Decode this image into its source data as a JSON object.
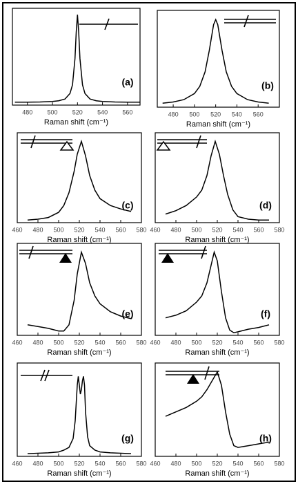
{
  "chart_data": [
    {
      "type": "line",
      "label": "(a)",
      "xlabel": "Raman shift (cm⁻¹)",
      "xlim": [
        468,
        570
      ],
      "xticks": [
        480,
        500,
        520,
        540,
        560
      ],
      "ylim": [
        0,
        1.05
      ],
      "color": "#000000",
      "x": [
        470,
        480,
        490,
        500,
        505,
        510,
        514,
        516,
        518,
        519,
        520,
        521,
        522,
        524,
        526,
        530,
        535,
        540,
        550,
        560,
        570
      ],
      "values": [
        0.032,
        0.032,
        0.034,
        0.039,
        0.047,
        0.066,
        0.125,
        0.22,
        0.505,
        0.79,
        0.98,
        0.79,
        0.505,
        0.22,
        0.125,
        0.066,
        0.047,
        0.039,
        0.034,
        0.032,
        0.032
      ]
    },
    {
      "type": "line",
      "label": "(b)",
      "xlabel": "Raman shift (cm⁻¹)",
      "xlim": [
        465,
        580
      ],
      "xticks": [
        480,
        500,
        520,
        540,
        560
      ],
      "ylim": [
        0,
        1.05
      ],
      "color": "#000000",
      "x": [
        470,
        480,
        490,
        500,
        505,
        510,
        514,
        518,
        520,
        522,
        526,
        530,
        535,
        540,
        550,
        560,
        570
      ],
      "values": [
        0.043,
        0.056,
        0.082,
        0.148,
        0.226,
        0.383,
        0.615,
        0.895,
        0.95,
        0.895,
        0.615,
        0.383,
        0.226,
        0.148,
        0.082,
        0.056,
        0.043
      ]
    },
    {
      "type": "line",
      "label": "(c)",
      "xlabel": "Raman shift (cm⁻¹)",
      "xlim": [
        460,
        580
      ],
      "xticks": [
        460,
        480,
        500,
        520,
        540,
        560,
        580
      ],
      "ylim": [
        0,
        1.05
      ],
      "color": "#000000",
      "x": [
        470,
        480,
        490,
        500,
        505,
        510,
        515,
        518,
        522,
        526,
        530,
        535,
        540,
        550,
        560,
        570
      ],
      "values": [
        0.03,
        0.04,
        0.06,
        0.12,
        0.2,
        0.35,
        0.6,
        0.8,
        0.95,
        0.78,
        0.55,
        0.38,
        0.28,
        0.2,
        0.16,
        0.13
      ]
    },
    {
      "type": "line",
      "label": "(d)",
      "xlabel": "Raman shift (cm⁻¹)",
      "xlim": [
        460,
        580
      ],
      "xticks": [
        460,
        480,
        500,
        520,
        540,
        560,
        580
      ],
      "ylim": [
        0,
        1.05
      ],
      "color": "#000000",
      "x": [
        470,
        480,
        490,
        500,
        505,
        510,
        514,
        518,
        522,
        526,
        530,
        535,
        540,
        550,
        560,
        570
      ],
      "values": [
        0.1,
        0.14,
        0.2,
        0.3,
        0.38,
        0.55,
        0.78,
        0.95,
        0.8,
        0.55,
        0.33,
        0.15,
        0.07,
        0.04,
        0.03,
        0.03
      ]
    },
    {
      "type": "line",
      "label": "(e)",
      "xlabel": "Raman shift (cm⁻¹)",
      "xlim": [
        460,
        580
      ],
      "xticks": [
        460,
        480,
        500,
        520,
        540,
        560,
        580
      ],
      "ylim": [
        0,
        1.05
      ],
      "color": "#000000",
      "x": [
        470,
        480,
        490,
        500,
        505,
        510,
        515,
        518,
        522,
        526,
        530,
        535,
        540,
        550,
        560,
        570
      ],
      "values": [
        0.12,
        0.1,
        0.08,
        0.05,
        0.05,
        0.12,
        0.4,
        0.7,
        0.95,
        0.82,
        0.6,
        0.45,
        0.36,
        0.27,
        0.22,
        0.19
      ]
    },
    {
      "type": "line",
      "label": "(f)",
      "xlabel": "Raman shift (cm⁻¹)",
      "xlim": [
        460,
        580
      ],
      "xticks": [
        460,
        480,
        500,
        520,
        540,
        560,
        580
      ],
      "ylim": [
        0,
        1.05
      ],
      "color": "#000000",
      "x": [
        470,
        480,
        490,
        500,
        505,
        510,
        514,
        517,
        520,
        524,
        528,
        532,
        536,
        540,
        550,
        560,
        570
      ],
      "values": [
        0.2,
        0.23,
        0.28,
        0.38,
        0.45,
        0.6,
        0.8,
        0.95,
        0.85,
        0.5,
        0.2,
        0.06,
        0.03,
        0.04,
        0.07,
        0.09,
        0.12
      ]
    },
    {
      "type": "line",
      "label": "(g)",
      "xlabel": "Raman shift (cm⁻¹)",
      "xlim": [
        460,
        580
      ],
      "xticks": [
        460,
        480,
        500,
        520,
        540,
        560,
        580
      ],
      "ylim": [
        0,
        1.05
      ],
      "color": "#000000",
      "x": [
        470,
        490,
        500,
        505,
        510,
        514,
        516,
        518,
        519,
        520,
        521,
        522,
        523,
        524,
        525,
        526,
        528,
        530,
        535,
        540,
        550,
        570
      ],
      "values": [
        0.03,
        0.04,
        0.05,
        0.07,
        0.1,
        0.2,
        0.4,
        0.8,
        0.9,
        0.8,
        0.7,
        0.75,
        0.85,
        0.9,
        0.8,
        0.5,
        0.22,
        0.12,
        0.07,
        0.05,
        0.04,
        0.03
      ]
    },
    {
      "type": "line",
      "label": "(h)",
      "xlabel": "Raman shift (cm⁻¹)",
      "xlim": [
        460,
        580
      ],
      "xticks": [
        460,
        480,
        500,
        520,
        540,
        560,
        580
      ],
      "ylim": [
        0,
        1.05
      ],
      "color": "#000000",
      "x": [
        470,
        480,
        490,
        500,
        505,
        510,
        515,
        520,
        524,
        528,
        532,
        536,
        540,
        550,
        560,
        570
      ],
      "values": [
        0.45,
        0.5,
        0.55,
        0.62,
        0.67,
        0.75,
        0.85,
        0.95,
        0.8,
        0.5,
        0.25,
        0.12,
        0.1,
        0.12,
        0.14,
        0.16
      ]
    }
  ]
}
